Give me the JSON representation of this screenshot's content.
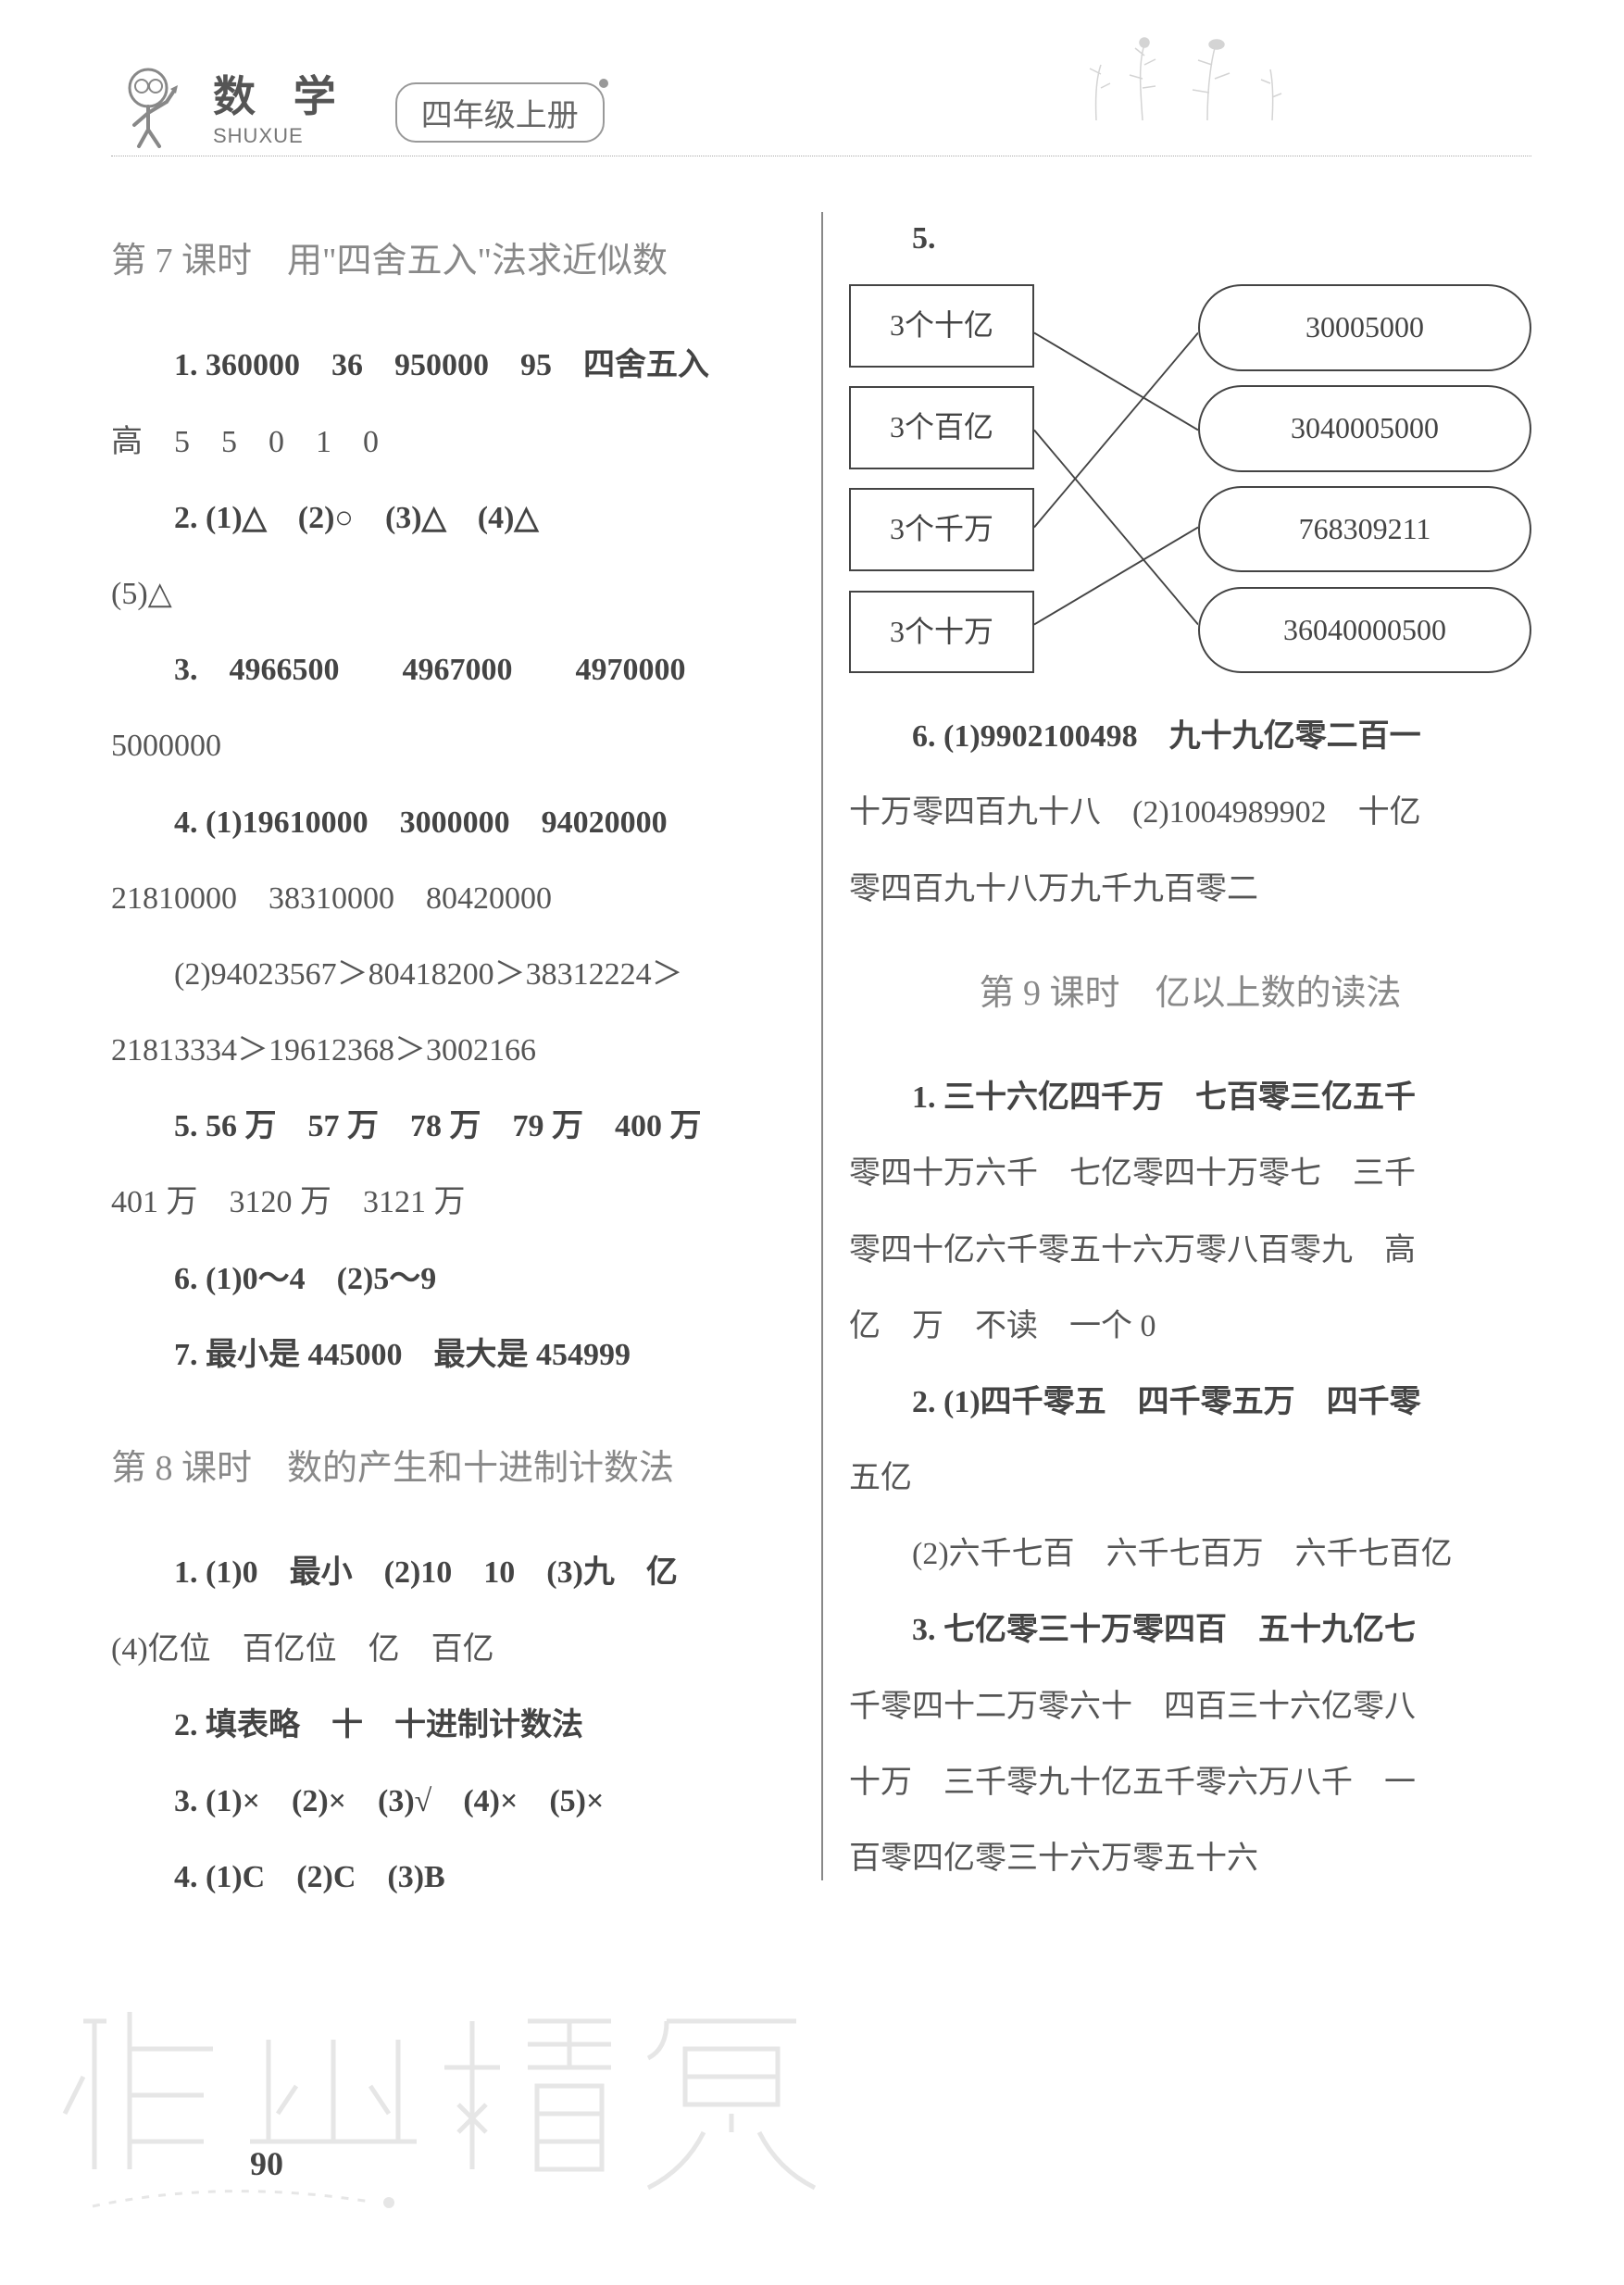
{
  "header": {
    "subject": "数 学",
    "pinyin": "SHUXUE",
    "grade": "四年级上册"
  },
  "left": {
    "lesson7_title": "第 7 课时　用\"四舍五入\"法求近似数",
    "l7_p1": "1. 360000　36　950000　95　四舍五入",
    "l7_p1b": "高　5　5　0　1　0",
    "l7_p2": "2. (1)△　(2)○　(3)△　(4)△",
    "l7_p2b": "(5)△",
    "l7_p3": "3.　4966500　　4967000　　4970000",
    "l7_p3b": "5000000",
    "l7_p4": "4. (1)19610000　3000000　94020000",
    "l7_p4b": "21810000　38310000　80420000",
    "l7_p4c": "(2)94023567＞80418200＞38312224＞",
    "l7_p4d": "21813334＞19612368＞3002166",
    "l7_p5": "5. 56 万　57 万　78 万　79 万　400 万",
    "l7_p5b": "401 万　3120 万　3121 万",
    "l7_p6": "6. (1)0～4　(2)5～9",
    "l7_p7": "7. 最小是 445000　最大是 454999",
    "lesson8_title": "第 8 课时　数的产生和十进制计数法",
    "l8_p1": "1. (1)0　最小　(2)10　10　(3)九　亿",
    "l8_p1b": "(4)亿位　百亿位　亿　百亿",
    "l8_p2": "2. 填表略　十　十进制计数法",
    "l8_p3": "3. (1)×　(2)×　(3)√　(4)×　(5)×",
    "l8_p4": "4. (1)C　(2)C　(3)B"
  },
  "right": {
    "q5_label": "5.",
    "match": {
      "left_nodes": [
        "3个十亿",
        "3个百亿",
        "3个千万",
        "3个十万"
      ],
      "right_nodes": [
        "30005000",
        "3040005000",
        "768309211",
        "36040000500"
      ],
      "edges": [
        {
          "from": 0,
          "to": 1
        },
        {
          "from": 1,
          "to": 3
        },
        {
          "from": 2,
          "to": 0
        },
        {
          "from": 3,
          "to": 2
        }
      ],
      "line_color": "#444444",
      "line_width": 2
    },
    "l8_p6a": "6. (1)9902100498　九十九亿零二百一",
    "l8_p6b": "十万零四百九十八　(2)1004989902　十亿",
    "l8_p6c": "零四百九十八万九千九百零二",
    "lesson9_title": "第 9 课时　亿以上数的读法",
    "l9_p1a": "1. 三十六亿四千万　七百零三亿五千",
    "l9_p1b": "零四十万六千　七亿零四十万零七　三千",
    "l9_p1c": "零四十亿六千零五十六万零八百零九　高",
    "l9_p1d": "亿　万　不读　一个 0",
    "l9_p2a": "2. (1)四千零五　四千零五万　四千零",
    "l9_p2b": "五亿",
    "l9_p2c": "(2)六千七百　六千七百万　六千七百亿",
    "l9_p3a": "3. 七亿零三十万零四百　五十九亿七",
    "l9_p3b": "千零四十二万零六十　四百三十六亿零八",
    "l9_p3c": "十万　三千零九十亿五千零六万八千　一",
    "l9_p3d": "百零四亿零三十六万零五十六"
  },
  "page_number": "90",
  "colors": {
    "text": "#555555",
    "heading": "#888888",
    "border": "#444444",
    "watermark": "#cccccc"
  }
}
